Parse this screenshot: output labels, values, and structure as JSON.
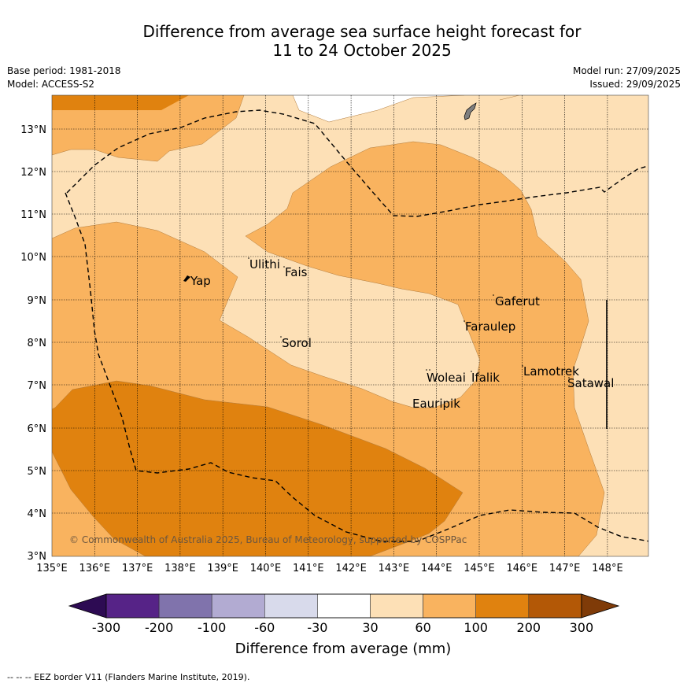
{
  "title": {
    "line1": "Difference from average sea surface height forecast for",
    "line2": "11 to 24 October 2025"
  },
  "meta": {
    "base_period": "Base period: 1981-2018",
    "model": "Model: ACCESS-S2",
    "model_run": "Model run: 27/09/2025",
    "issued": "Issued: 29/09/2025"
  },
  "map": {
    "lon_ticks": [
      "135°E",
      "136°E",
      "137°E",
      "138°E",
      "139°E",
      "140°E",
      "141°E",
      "142°E",
      "143°E",
      "144°E",
      "145°E",
      "146°E",
      "147°E",
      "148°E"
    ],
    "lat_ticks": [
      "13°N",
      "12°N",
      "11°N",
      "10°N",
      "9°N",
      "8°N",
      "7°N",
      "6°N",
      "5°N",
      "4°N",
      "3°N"
    ],
    "places": [
      "Yap",
      "Ulithi",
      "Fais",
      "Gaferut",
      "Faraulep",
      "Sorol",
      "Woleai",
      "Ifalik",
      "Lamotrek",
      "Satawal",
      "Eauripik"
    ],
    "copyright": "© Commonwealth of Australia 2025, Bureau of Meteorology, supported by COSPPac",
    "colors": {
      "band_30_60": "#fde0b6",
      "band_60_100": "#f9b35f",
      "band_100_200": "#e0820f",
      "land": "#7f7f7f"
    }
  },
  "legend": {
    "labels": [
      "-300",
      "-200",
      "-100",
      "-60",
      "-30",
      "30",
      "60",
      "100",
      "200",
      "300"
    ],
    "title": "Difference from average (mm)",
    "colors": [
      "#2d0b53",
      "#562387",
      "#8073ac",
      "#b2abd2",
      "#d8daeb",
      "#ffffff",
      "#fde0b6",
      "#f9b35f",
      "#e0820f",
      "#b35806",
      "#7f3b08"
    ]
  },
  "footer": "--  --  -- EEZ border V11 (Flanders Marine Institute, 2019)."
}
